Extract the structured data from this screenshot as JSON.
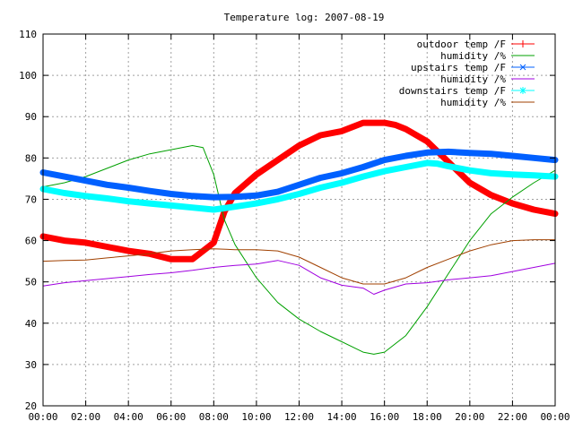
{
  "chart_data": {
    "type": "line",
    "title": "Temperature log: 2007-08-19",
    "xlabel": "",
    "ylabel": "",
    "xlim": [
      0,
      24
    ],
    "ylim": [
      20,
      110
    ],
    "grid": true,
    "legend_position": "top-right",
    "x_ticks": [
      "00:00",
      "02:00",
      "04:00",
      "06:00",
      "08:00",
      "10:00",
      "12:00",
      "14:00",
      "16:00",
      "18:00",
      "20:00",
      "22:00",
      "00:00"
    ],
    "y_ticks": [
      "20",
      "30",
      "40",
      "50",
      "60",
      "70",
      "80",
      "90",
      "100",
      "110"
    ],
    "series": [
      {
        "name": "outdoor temp /F",
        "color": "#ff0000",
        "marker": "plus",
        "x": [
          0,
          1,
          2,
          3,
          4,
          5,
          6,
          7,
          7.5,
          8,
          8.5,
          9,
          10,
          11,
          12,
          13,
          14,
          15,
          15.5,
          16,
          16.5,
          17,
          18,
          19,
          20,
          21,
          22,
          23,
          24
        ],
        "y": [
          61,
          60,
          59.5,
          58.5,
          57.5,
          56.8,
          55.5,
          55.5,
          57.5,
          59.5,
          67,
          71.5,
          76,
          79.5,
          83,
          85.5,
          86.5,
          88.5,
          88.5,
          88.5,
          88,
          87,
          84,
          79,
          74,
          71,
          69,
          67.5,
          66.5
        ]
      },
      {
        "name": "humidity /%",
        "color": "#00a000",
        "marker": "none",
        "x": [
          0,
          1,
          2,
          3,
          4,
          5,
          6,
          7,
          7.5,
          8,
          8.5,
          9,
          10,
          11,
          12,
          13,
          14,
          15,
          15.5,
          16,
          17,
          18,
          19,
          20,
          21,
          22,
          23,
          24
        ],
        "y": [
          73,
          74,
          75.5,
          77.5,
          79.5,
          81,
          82,
          83,
          82.5,
          76,
          65,
          59,
          51,
          45,
          41,
          38,
          35.5,
          33,
          32.5,
          33,
          37,
          44,
          52,
          60,
          66.5,
          70.5,
          74,
          77
        ]
      },
      {
        "name": "upstairs temp /F",
        "color": "#0060ff",
        "marker": "cross",
        "x": [
          0,
          1,
          2,
          3,
          4,
          5,
          6,
          7,
          8,
          9,
          10,
          11,
          12,
          13,
          14,
          15,
          16,
          17,
          18,
          19,
          20,
          21,
          22,
          23,
          24
        ],
        "y": [
          76.5,
          75.5,
          74.5,
          73.5,
          72.8,
          72,
          71.3,
          70.8,
          70.5,
          70.6,
          70.9,
          71.8,
          73.5,
          75.2,
          76.3,
          77.8,
          79.5,
          80.5,
          81.3,
          81.5,
          81.2,
          81,
          80.5,
          80,
          79.5
        ]
      },
      {
        "name": "humidity /%",
        "color": "#a000e0",
        "marker": "none",
        "x": [
          0,
          1,
          2,
          3,
          4,
          5,
          6,
          7,
          8,
          9,
          10,
          11,
          12,
          13,
          14,
          15,
          15.5,
          16,
          17,
          18,
          19,
          20,
          21,
          22,
          23,
          24
        ],
        "y": [
          49,
          49.8,
          50.3,
          50.8,
          51.3,
          51.8,
          52.2,
          52.8,
          53.5,
          54,
          54.3,
          55.2,
          54,
          51,
          49.2,
          48.5,
          47,
          48,
          49.5,
          49.8,
          50.5,
          51,
          51.5,
          52.5,
          53.5,
          54.5
        ]
      },
      {
        "name": "downstairs temp /F",
        "color": "#00ffff",
        "marker": "star",
        "x": [
          0,
          1,
          2,
          3,
          4,
          5,
          6,
          7,
          8,
          9,
          10,
          11,
          12,
          13,
          14,
          15,
          16,
          17,
          18,
          18.5,
          19,
          20,
          21,
          22,
          23,
          24
        ],
        "y": [
          72.5,
          71.5,
          70.8,
          70.2,
          69.5,
          69,
          68.5,
          68,
          67.5,
          68.2,
          69,
          70,
          71.3,
          72.8,
          74,
          75.5,
          76.8,
          77.8,
          78.8,
          78.6,
          78,
          77,
          76.3,
          76,
          75.8,
          75.5
        ]
      },
      {
        "name": "humidity /%",
        "color": "#a04000",
        "marker": "none",
        "x": [
          0,
          1,
          2,
          3,
          4,
          5,
          6,
          7,
          8,
          9,
          10,
          11,
          12,
          13,
          14,
          15,
          16,
          17,
          18,
          19,
          20,
          21,
          22,
          23,
          24
        ],
        "y": [
          55,
          55.2,
          55.3,
          55.8,
          56.3,
          56.8,
          57.5,
          57.8,
          58,
          57.8,
          57.8,
          57.5,
          56,
          53.5,
          51,
          49.5,
          49.5,
          51,
          53.5,
          55.5,
          57.5,
          59,
          60,
          60.2,
          60.2
        ]
      }
    ]
  }
}
